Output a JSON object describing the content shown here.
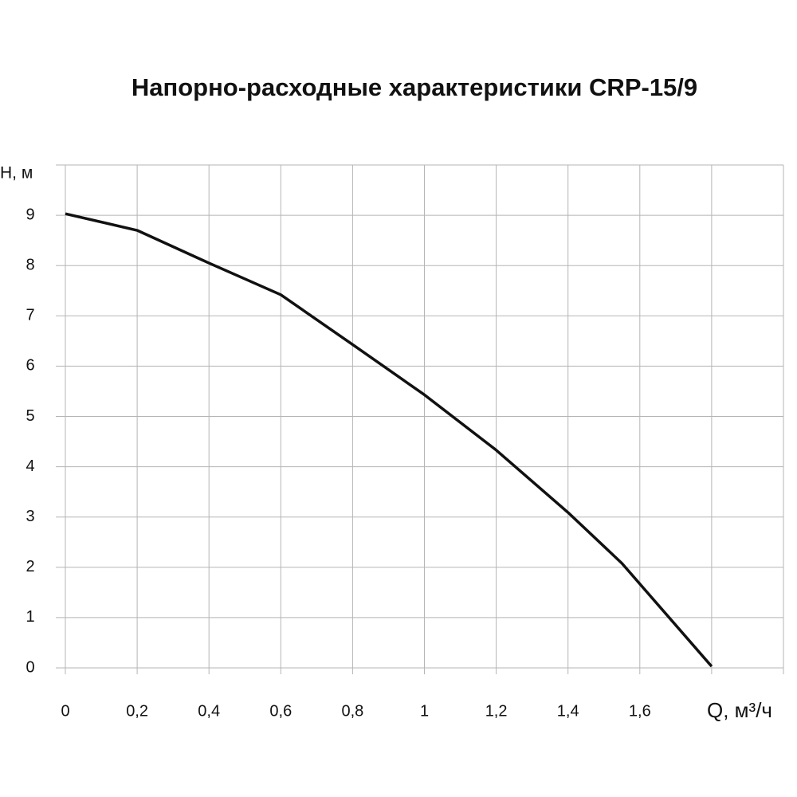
{
  "chart_data": {
    "type": "line",
    "title": "Напорно-расходные характеристики CRP-15/9",
    "x_label": "Q, м³/ч",
    "y_label": "H, м",
    "x": [
      0,
      0.2,
      0.4,
      0.6,
      0.8,
      1.0,
      1.2,
      1.4,
      1.55,
      1.8
    ],
    "series": [
      {
        "color": "#111111",
        "values": [
          9.03,
          8.7,
          8.05,
          7.42,
          6.43,
          5.43,
          4.33,
          3.09,
          2.08,
          0.03
        ]
      }
    ],
    "xlim": [
      0,
      2
    ],
    "ylim": [
      0,
      10
    ],
    "xticks": [
      0,
      {
        "value": 0.2,
        "label": "0,2"
      },
      {
        "value": 0.4,
        "label": "0,4"
      },
      {
        "value": 0.6,
        "label": "0,6"
      },
      {
        "value": 0.8,
        "label": "0,8"
      },
      1,
      {
        "value": 1.2,
        "label": "1,2"
      },
      {
        "value": 1.4,
        "label": "1,4"
      },
      {
        "value": 1.6,
        "label": "1,6"
      },
      {
        "value": 1.8,
        "label": null
      }
    ],
    "yticks": [
      0,
      1,
      2,
      3,
      4,
      5,
      6,
      7,
      8,
      9
    ],
    "grid": true
  }
}
